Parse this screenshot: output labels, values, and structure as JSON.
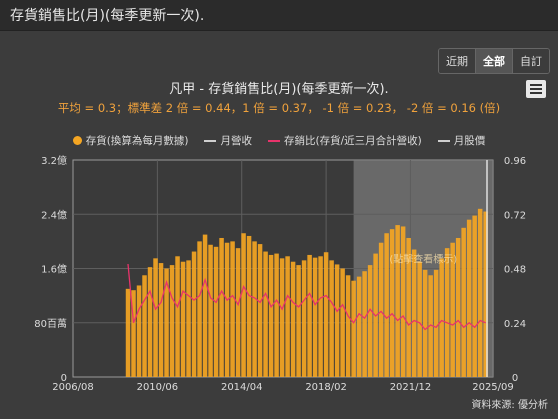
{
  "header": {
    "title": "存貨銷售比(月)(每季更新一次)."
  },
  "range_buttons": [
    {
      "label": "近期",
      "active": false
    },
    {
      "label": "全部",
      "active": true
    },
    {
      "label": "自訂",
      "active": false
    }
  ],
  "chart_data": {
    "type": "bar",
    "title": "凡甲 - 存貨銷售比(月)(每季更新一次).",
    "subtitle": "平均 = 0.3；標準差 2 倍 = 0.44，1 倍 = 0.37， -1 倍 = 0.23， -2 倍 = 0.16 (倍)",
    "legend": [
      {
        "label": "存貨(換算為每月數據)",
        "kind": "dot",
        "color": "#f5a623"
      },
      {
        "label": "月營收",
        "kind": "line",
        "color": "#cfcfcf"
      },
      {
        "label": "存銷比(存貨/近三月合計營收)",
        "kind": "line",
        "color": "#e8336b"
      },
      {
        "label": "月股價",
        "kind": "line",
        "color": "#cfcfcf"
      }
    ],
    "x_ticks": [
      "2006/08",
      "2010/06",
      "2014/04",
      "2018/02",
      "2021/12",
      "2025/09"
    ],
    "x_range": [
      "2006/08",
      "2025/09"
    ],
    "y_left": {
      "ticks": [
        "0",
        "80百萬",
        "1.6億",
        "2.4億",
        "3.2億"
      ],
      "range": [
        0,
        320
      ]
    },
    "y_right": {
      "ticks": [
        "0",
        "0.24",
        "0.48",
        "0.72",
        "0.96"
      ],
      "range": [
        0,
        0.96
      ]
    },
    "highlight_range": [
      "2019/05",
      "2025/09"
    ],
    "highlight_label": "(點擊查看標示)",
    "inventory": [
      {
        "period": "2009/Q1",
        "value": 130
      },
      {
        "period": "2009/Q2",
        "value": 128
      },
      {
        "period": "2009/Q3",
        "value": 135
      },
      {
        "period": "2009/Q4",
        "value": 150
      },
      {
        "period": "2010/Q1",
        "value": 162
      },
      {
        "period": "2010/Q2",
        "value": 175
      },
      {
        "period": "2010/Q3",
        "value": 168
      },
      {
        "period": "2010/Q4",
        "value": 160
      },
      {
        "period": "2011/Q1",
        "value": 165
      },
      {
        "period": "2011/Q2",
        "value": 178
      },
      {
        "period": "2011/Q3",
        "value": 170
      },
      {
        "period": "2011/Q4",
        "value": 172
      },
      {
        "period": "2012/Q1",
        "value": 185
      },
      {
        "period": "2012/Q2",
        "value": 200
      },
      {
        "period": "2012/Q3",
        "value": 210
      },
      {
        "period": "2012/Q4",
        "value": 195
      },
      {
        "period": "2013/Q1",
        "value": 192
      },
      {
        "period": "2013/Q2",
        "value": 205
      },
      {
        "period": "2013/Q3",
        "value": 198
      },
      {
        "period": "2013/Q4",
        "value": 200
      },
      {
        "period": "2014/Q1",
        "value": 190
      },
      {
        "period": "2014/Q2",
        "value": 212
      },
      {
        "period": "2014/Q3",
        "value": 208
      },
      {
        "period": "2014/Q4",
        "value": 200
      },
      {
        "period": "2015/Q1",
        "value": 196
      },
      {
        "period": "2015/Q2",
        "value": 185
      },
      {
        "period": "2015/Q3",
        "value": 180
      },
      {
        "period": "2015/Q4",
        "value": 182
      },
      {
        "period": "2016/Q1",
        "value": 175
      },
      {
        "period": "2016/Q2",
        "value": 178
      },
      {
        "period": "2016/Q3",
        "value": 170
      },
      {
        "period": "2016/Q4",
        "value": 165
      },
      {
        "period": "2017/Q1",
        "value": 172
      },
      {
        "period": "2017/Q2",
        "value": 180
      },
      {
        "period": "2017/Q3",
        "value": 176
      },
      {
        "period": "2017/Q4",
        "value": 178
      },
      {
        "period": "2018/Q1",
        "value": 184
      },
      {
        "period": "2018/Q2",
        "value": 172
      },
      {
        "period": "2018/Q3",
        "value": 166
      },
      {
        "period": "2018/Q4",
        "value": 160
      },
      {
        "period": "2019/Q1",
        "value": 150
      },
      {
        "period": "2019/Q2",
        "value": 142
      },
      {
        "period": "2019/Q3",
        "value": 148
      },
      {
        "period": "2019/Q4",
        "value": 156
      },
      {
        "period": "2020/Q1",
        "value": 165
      },
      {
        "period": "2020/Q2",
        "value": 182
      },
      {
        "period": "2020/Q3",
        "value": 198
      },
      {
        "period": "2020/Q4",
        "value": 212
      },
      {
        "period": "2021/Q1",
        "value": 218
      },
      {
        "period": "2021/Q2",
        "value": 224
      },
      {
        "period": "2021/Q3",
        "value": 222
      },
      {
        "period": "2021/Q4",
        "value": 205
      },
      {
        "period": "2022/Q1",
        "value": 188
      },
      {
        "period": "2022/Q2",
        "value": 170
      },
      {
        "period": "2022/Q3",
        "value": 158
      },
      {
        "period": "2022/Q4",
        "value": 150
      },
      {
        "period": "2023/Q1",
        "value": 158
      },
      {
        "period": "2023/Q2",
        "value": 175
      },
      {
        "period": "2023/Q3",
        "value": 190
      },
      {
        "period": "2023/Q4",
        "value": 198
      },
      {
        "period": "2024/Q1",
        "value": 205
      },
      {
        "period": "2024/Q2",
        "value": 220
      },
      {
        "period": "2024/Q3",
        "value": 232
      },
      {
        "period": "2024/Q4",
        "value": 238
      },
      {
        "period": "2025/Q1",
        "value": 248
      },
      {
        "period": "2025/Q2",
        "value": 244
      }
    ],
    "ratio": [
      {
        "period": "2009/Q1",
        "value": 0.5
      },
      {
        "period": "2009/Q2",
        "value": 0.24
      },
      {
        "period": "2009/Q3",
        "value": 0.3
      },
      {
        "period": "2009/Q4",
        "value": 0.34
      },
      {
        "period": "2010/Q1",
        "value": 0.38
      },
      {
        "period": "2010/Q2",
        "value": 0.3
      },
      {
        "period": "2010/Q3",
        "value": 0.33
      },
      {
        "period": "2010/Q4",
        "value": 0.42
      },
      {
        "period": "2011/Q1",
        "value": 0.35
      },
      {
        "period": "2011/Q2",
        "value": 0.31
      },
      {
        "period": "2011/Q3",
        "value": 0.38
      },
      {
        "period": "2011/Q4",
        "value": 0.36
      },
      {
        "period": "2012/Q1",
        "value": 0.34
      },
      {
        "period": "2012/Q2",
        "value": 0.36
      },
      {
        "period": "2012/Q3",
        "value": 0.43
      },
      {
        "period": "2012/Q4",
        "value": 0.35
      },
      {
        "period": "2013/Q1",
        "value": 0.33
      },
      {
        "period": "2013/Q2",
        "value": 0.38
      },
      {
        "period": "2013/Q3",
        "value": 0.34
      },
      {
        "period": "2013/Q4",
        "value": 0.36
      },
      {
        "period": "2014/Q1",
        "value": 0.32
      },
      {
        "period": "2014/Q2",
        "value": 0.4
      },
      {
        "period": "2014/Q3",
        "value": 0.36
      },
      {
        "period": "2014/Q4",
        "value": 0.35
      },
      {
        "period": "2015/Q1",
        "value": 0.33
      },
      {
        "period": "2015/Q2",
        "value": 0.37
      },
      {
        "period": "2015/Q3",
        "value": 0.31
      },
      {
        "period": "2015/Q4",
        "value": 0.34
      },
      {
        "period": "2016/Q1",
        "value": 0.3
      },
      {
        "period": "2016/Q2",
        "value": 0.36
      },
      {
        "period": "2016/Q3",
        "value": 0.33
      },
      {
        "period": "2016/Q4",
        "value": 0.31
      },
      {
        "period": "2017/Q1",
        "value": 0.34
      },
      {
        "period": "2017/Q2",
        "value": 0.37
      },
      {
        "period": "2017/Q3",
        "value": 0.32
      },
      {
        "period": "2017/Q4",
        "value": 0.35
      },
      {
        "period": "2018/Q1",
        "value": 0.36
      },
      {
        "period": "2018/Q2",
        "value": 0.33
      },
      {
        "period": "2018/Q3",
        "value": 0.29
      },
      {
        "period": "2018/Q4",
        "value": 0.32
      },
      {
        "period": "2019/Q1",
        "value": 0.27
      },
      {
        "period": "2019/Q2",
        "value": 0.24
      },
      {
        "period": "2019/Q3",
        "value": 0.28
      },
      {
        "period": "2019/Q4",
        "value": 0.26
      },
      {
        "period": "2020/Q1",
        "value": 0.3
      },
      {
        "period": "2020/Q2",
        "value": 0.27
      },
      {
        "period": "2020/Q3",
        "value": 0.29
      },
      {
        "period": "2020/Q4",
        "value": 0.26
      },
      {
        "period": "2021/Q1",
        "value": 0.28
      },
      {
        "period": "2021/Q2",
        "value": 0.25
      },
      {
        "period": "2021/Q3",
        "value": 0.27
      },
      {
        "period": "2021/Q4",
        "value": 0.23
      },
      {
        "period": "2022/Q1",
        "value": 0.25
      },
      {
        "period": "2022/Q2",
        "value": 0.24
      },
      {
        "period": "2022/Q3",
        "value": 0.21
      },
      {
        "period": "2022/Q4",
        "value": 0.23
      },
      {
        "period": "2023/Q1",
        "value": 0.22
      },
      {
        "period": "2023/Q2",
        "value": 0.25
      },
      {
        "period": "2023/Q3",
        "value": 0.24
      },
      {
        "period": "2023/Q4",
        "value": 0.23
      },
      {
        "period": "2024/Q1",
        "value": 0.25
      },
      {
        "period": "2024/Q2",
        "value": 0.22
      },
      {
        "period": "2024/Q3",
        "value": 0.24
      },
      {
        "period": "2024/Q4",
        "value": 0.22
      },
      {
        "period": "2025/Q1",
        "value": 0.25
      },
      {
        "period": "2025/Q2",
        "value": 0.24
      }
    ]
  },
  "source_text": "資料來源: 優分析"
}
